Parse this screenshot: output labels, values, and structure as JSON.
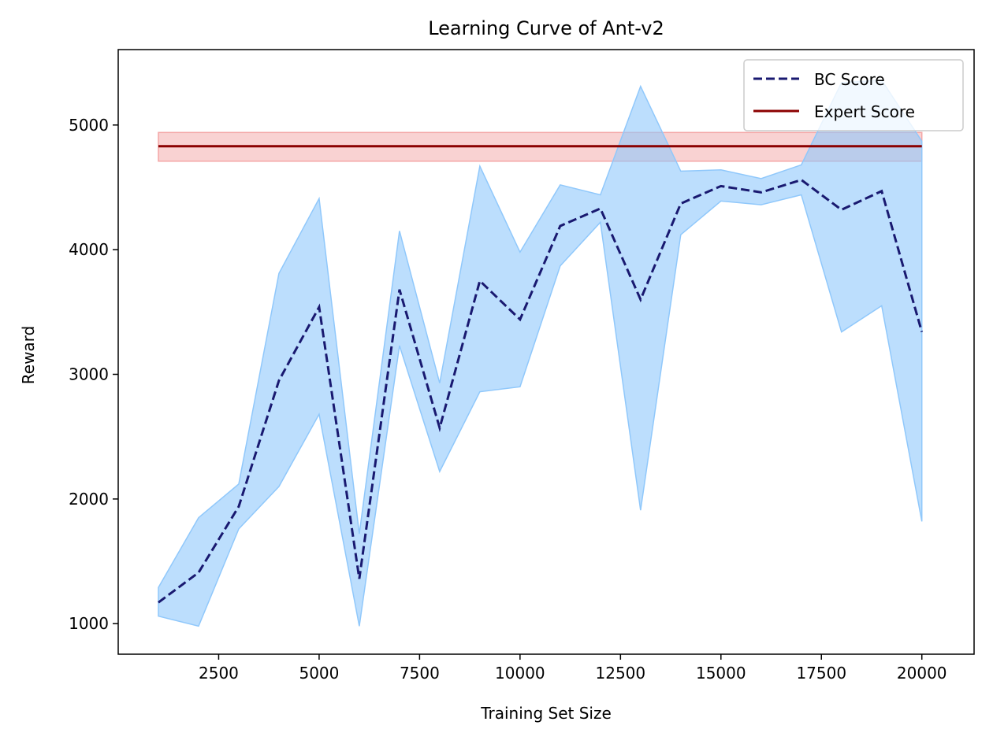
{
  "chart_data": {
    "type": "line",
    "title": "Learning Curve of Ant-v2",
    "xlabel": "Training Set Size",
    "ylabel": "Reward",
    "xlim": [
      0,
      21300
    ],
    "ylim": [
      755,
      5605
    ],
    "xticks": [
      2500,
      5000,
      7500,
      10000,
      12500,
      15000,
      17500,
      20000
    ],
    "yticks": [
      1000,
      2000,
      3000,
      4000,
      5000
    ],
    "grid": false,
    "legend_position": "upper-right",
    "x": [
      1000,
      2000,
      3000,
      4000,
      5000,
      6000,
      7000,
      8000,
      9000,
      10000,
      11000,
      12000,
      13000,
      14000,
      15000,
      16000,
      17000,
      18000,
      19000,
      20000
    ],
    "series": [
      {
        "name": "BC Score",
        "style": "dashed",
        "color": "#191970",
        "values": [
          1170,
          1410,
          1940,
          2950,
          3540,
          1360,
          3680,
          2570,
          3750,
          3440,
          4190,
          4330,
          3600,
          4370,
          4510,
          4460,
          4560,
          4320,
          4470,
          3340
        ],
        "band_upper": [
          1290,
          1850,
          2120,
          3810,
          4410,
          1720,
          4150,
          2930,
          4670,
          3980,
          4520,
          4440,
          5310,
          4630,
          4640,
          4570,
          4680,
          5340,
          5360,
          4870
        ],
        "band_lower": [
          1060,
          980,
          1760,
          2100,
          2680,
          980,
          3230,
          2220,
          2860,
          2900,
          3870,
          4220,
          1910,
          4120,
          4390,
          4360,
          4440,
          3340,
          3550,
          1820
        ],
        "band_color": "#90c8fb"
      },
      {
        "name": "Expert Score",
        "style": "solid",
        "color": "#8b0000",
        "x_range": [
          1000,
          20000
        ],
        "value": 4830,
        "band": [
          4710,
          4940
        ],
        "band_color": "#f4a6a6"
      }
    ]
  }
}
